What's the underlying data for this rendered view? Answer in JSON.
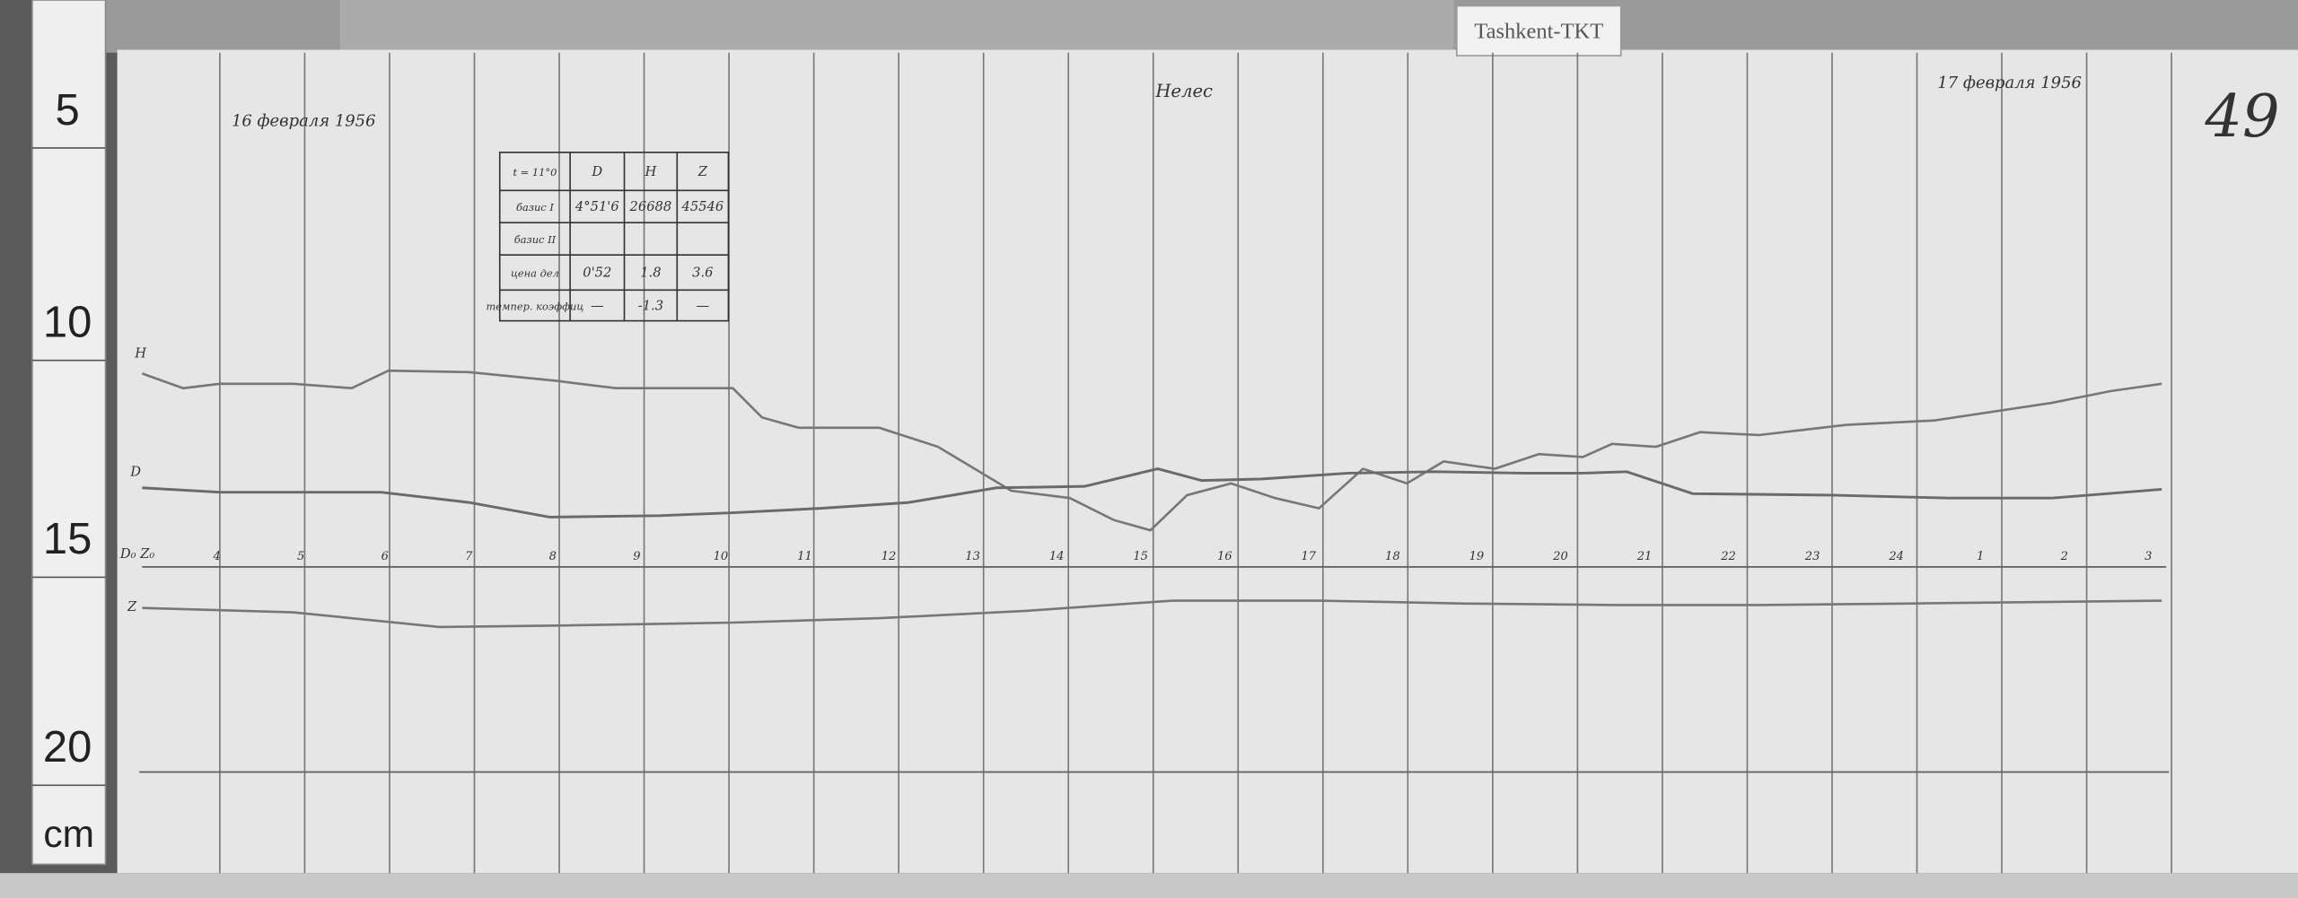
{
  "label_tag": "Tashkent-TKT",
  "header": {
    "date_start": "16 февраля 1956",
    "station": "Нелес",
    "date_end": "17 февраля 1956",
    "sheet_number": "49"
  },
  "ruler": {
    "marks": [
      "5",
      "10",
      "15",
      "20"
    ],
    "unit": "cm"
  },
  "table": {
    "rows": [
      [
        "t = 11°0",
        "D",
        "H",
        "Z"
      ],
      [
        "базис I",
        "4°51'6",
        "26688",
        "45546"
      ],
      [
        "базис II",
        "",
        "",
        ""
      ],
      [
        "цена дел",
        "0'52",
        "1.8",
        "3.6"
      ],
      [
        "темпер. коэффиц",
        "—",
        "-1.3",
        "—"
      ]
    ]
  },
  "traces": {
    "labels": [
      "H",
      "D",
      "D₀ Z₀",
      "Z"
    ]
  },
  "hours": [
    "4",
    "5",
    "6",
    "7",
    "8",
    "9",
    "10",
    "11",
    "12",
    "13",
    "14",
    "15",
    "16",
    "17",
    "18",
    "19",
    "20",
    "21",
    "22",
    "23",
    "24",
    "1",
    "2",
    "3"
  ]
}
